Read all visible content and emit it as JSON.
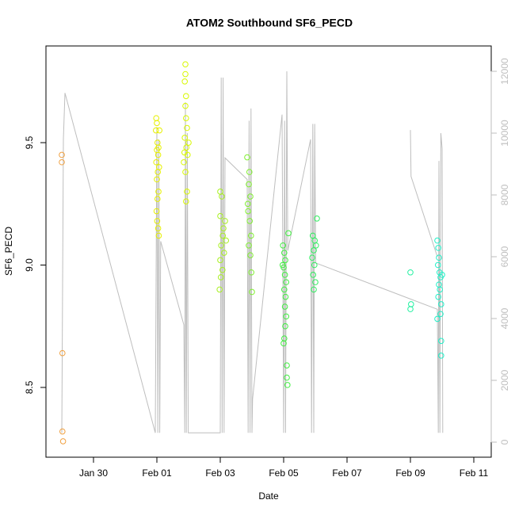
{
  "chart_data": {
    "type": "scatter",
    "title": "ATOM2 Southbound SF6_PECD",
    "x_label": "Date",
    "y_label": "SF6_PECD",
    "xlim": [
      28.5,
      42.55
    ],
    "xticks": [
      {
        "value": 30,
        "label": "Jan 30"
      },
      {
        "value": 32,
        "label": "Feb 01"
      },
      {
        "value": 34,
        "label": "Feb 03"
      },
      {
        "value": 36,
        "label": "Feb 05"
      },
      {
        "value": 38,
        "label": "Feb 07"
      },
      {
        "value": 40,
        "label": "Feb 09"
      },
      {
        "value": 42,
        "label": "Feb 11"
      }
    ],
    "ylim": [
      8.215,
      9.895
    ],
    "yticks": [
      8.5,
      {
        "value": 9,
        "label": "9.0"
      },
      9.5
    ],
    "y2lim": [
      -487,
      12821
    ],
    "y2ticks": [
      0,
      2000,
      4000,
      6000,
      8000,
      10000,
      12000
    ],
    "series": [
      {
        "color": "#f0a040",
        "x": [
          29.0,
          29.0,
          29.02,
          29.02,
          29.04
        ],
        "values": [
          9.45,
          9.42,
          8.64,
          8.32,
          8.28
        ]
      },
      {
        "color": "#e6f000",
        "x": [
          31.98,
          32.0,
          31.97,
          32.02,
          32.0,
          32.04,
          31.98,
          32.03,
          32.0,
          32.05,
          32.02,
          31.99,
          32.01,
          32.04,
          32.06,
          32.08,
          32.05,
          32.07
        ],
        "values": [
          9.6,
          9.58,
          9.55,
          9.5,
          9.47,
          9.45,
          9.42,
          9.38,
          9.35,
          9.3,
          9.27,
          9.22,
          9.18,
          9.15,
          9.12,
          9.55,
          9.48,
          9.4
        ]
      },
      {
        "color": "#d8f800",
        "x": [
          32.9,
          32.9,
          32.88,
          32.92,
          32.9,
          32.92,
          32.95,
          32.88,
          32.93,
          32.97,
          32.85,
          32.9,
          32.95,
          32.92,
          33.0,
          32.87
        ],
        "values": [
          9.82,
          9.78,
          9.75,
          9.69,
          9.65,
          9.6,
          9.56,
          9.52,
          9.48,
          9.45,
          9.42,
          9.38,
          9.3,
          9.26,
          9.5,
          9.46
        ]
      },
      {
        "color": "#a8f020",
        "x": [
          34.0,
          34.05,
          34.0,
          34.1,
          34.08,
          34.03,
          34.12,
          34.0,
          34.07,
          34.02,
          33.98,
          34.15,
          34.18
        ],
        "values": [
          9.3,
          9.28,
          9.2,
          9.15,
          9.12,
          9.08,
          9.05,
          9.02,
          8.98,
          8.95,
          8.9,
          9.18,
          9.1
        ]
      },
      {
        "color": "#80f030",
        "x": [
          34.85,
          34.92,
          34.9,
          34.95,
          34.88,
          34.93,
          34.97,
          34.9,
          34.95,
          34.98,
          35.0,
          34.87
        ],
        "values": [
          9.44,
          9.38,
          9.33,
          9.28,
          9.22,
          9.18,
          9.12,
          9.08,
          9.04,
          8.97,
          8.89,
          9.25
        ]
      },
      {
        "color": "#40f040",
        "x": [
          35.98,
          36.02,
          36.05,
          36.0,
          36.04,
          36.08,
          36.02,
          36.06,
          36.04,
          36.08,
          36.05,
          36.02,
          36.0,
          36.1,
          36.1,
          36.12,
          36.15,
          35.97
        ],
        "values": [
          9.08,
          9.05,
          9.02,
          8.99,
          8.96,
          8.93,
          8.9,
          8.87,
          8.83,
          8.79,
          8.75,
          8.7,
          8.68,
          8.59,
          8.54,
          8.51,
          9.13,
          9.0
        ]
      },
      {
        "color": "#30f060",
        "x": [
          37.05,
          36.92,
          36.98,
          36.95,
          36.9,
          36.97,
          36.93,
          37.0,
          36.95,
          37.02
        ],
        "values": [
          9.19,
          9.12,
          9.1,
          9.06,
          9.03,
          9.0,
          8.96,
          8.93,
          8.9,
          9.08
        ]
      },
      {
        "color": "#20f0a0",
        "x": [
          40.0,
          40.02,
          40.0
        ],
        "values": [
          8.97,
          8.84,
          8.82
        ]
      },
      {
        "color": "#20f0c8",
        "x": [
          40.85,
          40.88,
          40.9,
          40.87,
          40.92,
          40.95,
          40.9,
          40.93,
          40.88,
          40.97,
          40.95,
          40.85,
          40.97,
          40.97,
          41.0
        ],
        "values": [
          9.1,
          9.07,
          9.03,
          9.0,
          8.97,
          8.95,
          8.92,
          8.9,
          8.87,
          8.84,
          8.8,
          8.78,
          8.69,
          8.63,
          8.96
        ]
      },
      {
        "axis": "y2",
        "color": "#bebebe",
        "x": [
          29.0,
          29.05,
          29.1,
          31.95,
          32.0,
          32.03,
          32.06,
          32.09,
          32.12,
          32.85,
          32.88,
          32.9,
          32.93,
          32.96,
          32.99,
          34.0,
          34.03,
          34.06,
          34.09,
          34.12,
          34.15,
          34.85,
          34.88,
          34.91,
          34.94,
          34.97,
          35.0,
          35.02,
          35.95,
          36.0,
          36.03,
          36.06,
          36.1,
          36.13,
          36.85,
          36.88,
          36.92,
          36.95,
          36.98,
          37.01,
          40.85,
          40.88,
          40.9,
          40.93,
          40.96,
          41.0,
          41.02,
          null,
          40.0,
          40.02,
          40.85
        ],
        "values": [
          300,
          9800,
          11300,
          300,
          10200,
          300,
          9800,
          300,
          6500,
          3800,
          300,
          11000,
          300,
          10000,
          300,
          300,
          11800,
          300,
          11800,
          300,
          9200,
          8500,
          300,
          10400,
          300,
          10800,
          300,
          1400,
          10600,
          300,
          10400,
          300,
          12000,
          6200,
          9800,
          300,
          10300,
          300,
          10300,
          5800,
          4300,
          300,
          9100,
          300,
          10000,
          9500,
          300,
          null,
          10100,
          8600,
          6000
        ]
      }
    ]
  }
}
